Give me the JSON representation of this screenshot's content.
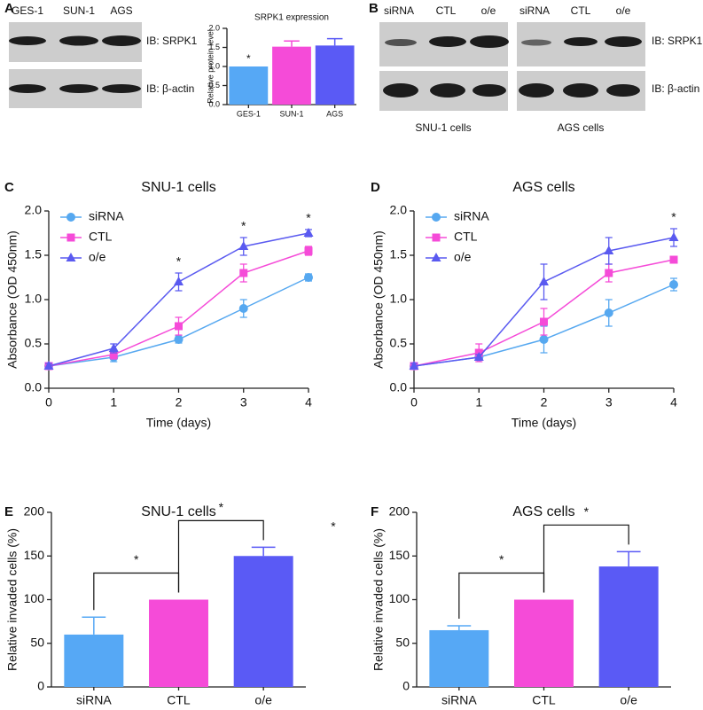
{
  "blots": [
    {
      "panel": "A",
      "lanes": [
        "GES-1",
        "SUN-1",
        "AGS"
      ],
      "rows": [
        "IB: SRPK1",
        "IB: β-actin"
      ]
    },
    {
      "panel": "B",
      "lanes": [
        "siRNA",
        "CTL",
        "o/e",
        "siRNA",
        "CTL",
        "o/e"
      ],
      "rows": [
        "IB: SRPK1",
        "IB: β-actin"
      ],
      "groups": [
        "SNU-1 cells",
        "AGS cells"
      ]
    }
  ],
  "chart_data": [
    {
      "type": "bar",
      "title": "SRPK1 expression",
      "y_label": "Relative protein level",
      "categories": [
        "GES-1",
        "SUN-1",
        "AGS"
      ],
      "values": [
        1.0,
        1.52,
        1.55
      ],
      "errors": [
        null,
        0.15,
        0.18
      ],
      "colors": [
        "#56a8f5",
        "#f54bd8",
        "#5a5af5"
      ],
      "ylim": [
        0,
        2
      ],
      "yticks": [
        {
          "value": 0,
          "label": "0.0"
        },
        {
          "value": 0.5,
          "label": "0.5"
        },
        {
          "value": 1,
          "label": "1.0"
        },
        {
          "value": 1.5,
          "label": "1.5"
        },
        {
          "value": 2,
          "label": "2.0"
        }
      ],
      "significance": [
        {
          "text": "*",
          "category": "GES-1"
        }
      ]
    },
    {
      "type": "line",
      "panel": "C",
      "title": "SNU-1 cells",
      "x_label": "Time (days)",
      "y_label": "Absorbance (OD 450nm)",
      "x": [
        0,
        1,
        2,
        3,
        4
      ],
      "xlim": [
        0,
        4
      ],
      "xticks": [
        0,
        1,
        2,
        3,
        4
      ],
      "ylim": [
        0,
        2
      ],
      "yticks": [
        {
          "value": 0,
          "label": "0.0"
        },
        {
          "value": 0.5,
          "label": "0.5"
        },
        {
          "value": 1,
          "label": "1.0"
        },
        {
          "value": 1.5,
          "label": "1.5"
        },
        {
          "value": 2,
          "label": "2.0"
        }
      ],
      "legend": "upper left",
      "series": [
        {
          "name": "siRNA",
          "color": "#56a8f0",
          "marker": "circle",
          "values": [
            0.25,
            0.35,
            0.55,
            0.9,
            1.25
          ],
          "errors": [
            0.03,
            0.05,
            0.04,
            0.1,
            0.04
          ]
        },
        {
          "name": "CTL",
          "color": "#f54bd8",
          "marker": "square",
          "values": [
            0.25,
            0.38,
            0.7,
            1.3,
            1.55
          ],
          "errors": [
            0.03,
            0.05,
            0.1,
            0.1,
            0.05
          ]
        },
        {
          "name": "o/e",
          "color": "#5a5af0",
          "marker": "triangle",
          "values": [
            0.25,
            0.45,
            1.2,
            1.6,
            1.75
          ],
          "errors": [
            0.03,
            0.05,
            0.1,
            0.1,
            0.04
          ]
        }
      ],
      "significance": [
        {
          "text": "*",
          "x": 2
        },
        {
          "text": "*",
          "x": 3
        },
        {
          "text": "*",
          "x": 4
        }
      ]
    },
    {
      "type": "line",
      "panel": "D",
      "title": "AGS cells",
      "x_label": "Time (days)",
      "y_label": "Absorbance (OD 450nm)",
      "x": [
        0,
        1,
        2,
        3,
        4
      ],
      "xlim": [
        0,
        4
      ],
      "xticks": [
        0,
        1,
        2,
        3,
        4
      ],
      "ylim": [
        0,
        2
      ],
      "yticks": [
        {
          "value": 0,
          "label": "0.0"
        },
        {
          "value": 0.5,
          "label": "0.5"
        },
        {
          "value": 1,
          "label": "1.0"
        },
        {
          "value": 1.5,
          "label": "1.5"
        },
        {
          "value": 2,
          "label": "2.0"
        }
      ],
      "legend": "upper left",
      "series": [
        {
          "name": "siRNA",
          "color": "#56a8f0",
          "marker": "circle",
          "values": [
            0.25,
            0.35,
            0.55,
            0.85,
            1.17
          ],
          "errors": [
            0.03,
            0.03,
            0.15,
            0.15,
            0.07
          ]
        },
        {
          "name": "CTL",
          "color": "#f54bd8",
          "marker": "square",
          "values": [
            0.25,
            0.4,
            0.75,
            1.3,
            1.45
          ],
          "errors": [
            0.03,
            0.1,
            0.15,
            0.1,
            0.03
          ]
        },
        {
          "name": "o/e",
          "color": "#5a5af0",
          "marker": "triangle",
          "values": [
            0.25,
            0.35,
            1.2,
            1.55,
            1.7
          ],
          "errors": [
            0.03,
            0.03,
            0.2,
            0.15,
            0.1
          ]
        }
      ],
      "significance": [
        {
          "text": "*",
          "x": 4
        }
      ]
    },
    {
      "type": "bar",
      "panel": "E",
      "title": "SNU-1 cells",
      "y_label": "Relative invaded cells (%)",
      "categories": [
        "siRNA",
        "CTL",
        "o/e"
      ],
      "values": [
        60,
        100,
        150
      ],
      "errors": [
        20,
        null,
        10
      ],
      "colors": [
        "#56a8f5",
        "#f54bd8",
        "#5a5af5"
      ],
      "ylim": [
        0,
        200
      ],
      "yticks": [
        0,
        50,
        100,
        150,
        200
      ],
      "comparisons": [
        {
          "pair": [
            "siRNA",
            "CTL"
          ],
          "text": "*"
        },
        {
          "pair": [
            "CTL",
            "o/e"
          ],
          "text": "*"
        }
      ],
      "extra_annotations": [
        "*"
      ]
    },
    {
      "type": "bar",
      "panel": "F",
      "title": "AGS cells",
      "y_label": "Relative invaded cells (%)",
      "categories": [
        "siRNA",
        "CTL",
        "o/e"
      ],
      "values": [
        65,
        100,
        138
      ],
      "errors": [
        5,
        null,
        17
      ],
      "colors": [
        "#56a8f5",
        "#f54bd8",
        "#5a5af5"
      ],
      "ylim": [
        0,
        200
      ],
      "yticks": [
        0,
        50,
        100,
        150,
        200
      ],
      "comparisons": [
        {
          "pair": [
            "siRNA",
            "CTL"
          ],
          "text": "*"
        },
        {
          "pair": [
            "CTL",
            "o/e"
          ],
          "text": "*"
        }
      ]
    }
  ]
}
